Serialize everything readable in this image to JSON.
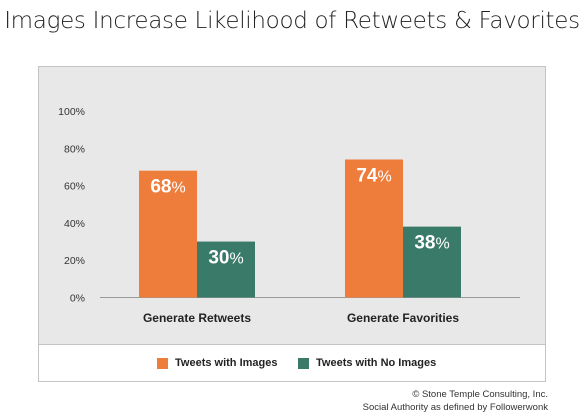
{
  "chart_data": {
    "type": "bar",
    "title": "Images Increase Likelihood of Retweets & Favorites",
    "categories": [
      "Generate Retweets",
      "Generate Favorities"
    ],
    "series": [
      {
        "name": "Tweets with Images",
        "values": [
          68,
          74
        ],
        "color": "#ee7c3a",
        "labels": [
          "68",
          "74"
        ]
      },
      {
        "name": "Tweets with No Images",
        "values": [
          30,
          38
        ],
        "color": "#3a7a68",
        "labels": [
          "30",
          "38"
        ]
      }
    ],
    "percent_sign": "%",
    "ylim": [
      0,
      100
    ],
    "yticks": [
      "0%",
      "20%",
      "40%",
      "60%",
      "80%",
      "100%"
    ],
    "ytick_values": [
      0,
      20,
      40,
      60,
      80,
      100
    ],
    "grid": false,
    "legend_position": "bottom"
  },
  "footer": {
    "line1": "© Stone Temple Consulting, Inc.",
    "line2": "Social Authority as defined by Followerwonk"
  }
}
